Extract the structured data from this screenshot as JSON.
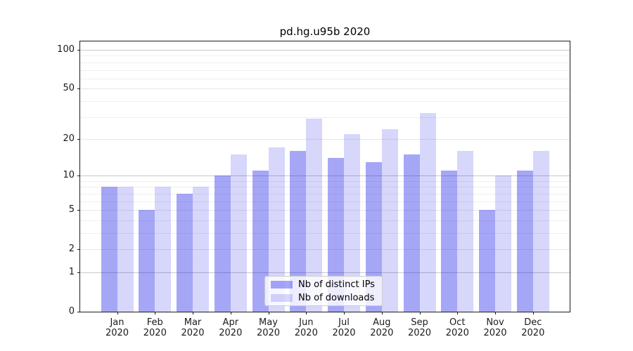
{
  "figure": {
    "title": "pd.hg.u95b 2020"
  },
  "legend": {
    "items": [
      {
        "label": "Nb of distinct IPs",
        "swatch_color": "rgba(20,20,235,0.38)"
      },
      {
        "label": "Nb of downloads",
        "swatch_color": "rgba(20,20,235,0.17)"
      }
    ],
    "position": "lower center"
  },
  "chart_data": {
    "type": "bar",
    "title": "pd.hg.u95b 2020",
    "categories": [
      "Jan",
      "Feb",
      "Mar",
      "Apr",
      "May",
      "Jun",
      "Jul",
      "Aug",
      "Sep",
      "Oct",
      "Nov",
      "Dec"
    ],
    "category_year": "2020",
    "series": [
      {
        "name": "Nb of distinct IPs",
        "color": "rgba(20,20,235,0.38)",
        "values": [
          8,
          5,
          7,
          10,
          11,
          16,
          14,
          13,
          15,
          11,
          5,
          11
        ]
      },
      {
        "name": "Nb of downloads",
        "color": "rgba(20,20,235,0.17)",
        "values": [
          8,
          8,
          8,
          15,
          17,
          29,
          22,
          24,
          32,
          16,
          10,
          16
        ]
      }
    ],
    "xlabel": "",
    "ylabel": "",
    "yscale": "log10(1+value)",
    "ylim": [
      0,
      117
    ],
    "yticks": [
      0,
      1,
      2,
      5,
      10,
      20,
      50,
      100
    ],
    "grid": {
      "major_values": [
        1,
        10,
        100
      ],
      "labeled_values": [
        2,
        5,
        20,
        50
      ],
      "minor_values": [
        3,
        4,
        6,
        7,
        8,
        9,
        30,
        40,
        60,
        70,
        80,
        90
      ],
      "major_color": "#c8c8c8",
      "labeled_color": "#e7e7e7",
      "minor_color": "#efefef"
    },
    "legend_entries": [
      "Nb of distinct IPs",
      "Nb of downloads"
    ]
  }
}
